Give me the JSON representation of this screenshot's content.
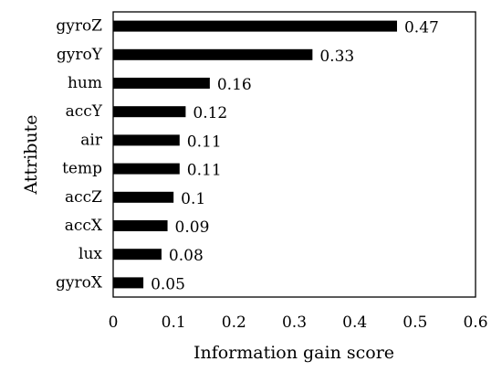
{
  "chart_data": {
    "type": "bar",
    "orientation": "horizontal",
    "categories": [
      "gyroZ",
      "gyroY",
      "hum",
      "accY",
      "air",
      "temp",
      "accZ",
      "accX",
      "lux",
      "gyroX"
    ],
    "values": [
      0.47,
      0.33,
      0.16,
      0.12,
      0.11,
      0.11,
      0.1,
      0.09,
      0.08,
      0.05
    ],
    "data_labels": [
      "0.47",
      "0.33",
      "0.16",
      "0.12",
      "0.11",
      "0.11",
      "0.1",
      "0.09",
      "0.08",
      "0.05"
    ],
    "xlabel": "Information gain score",
    "ylabel": "Attribute",
    "xlim": [
      0,
      0.6
    ],
    "x_ticks": [
      "0",
      "0.1",
      "0.2",
      "0.3",
      "0.4",
      "0.5",
      "0.6"
    ],
    "grid": false,
    "bar_color": "#000000"
  }
}
